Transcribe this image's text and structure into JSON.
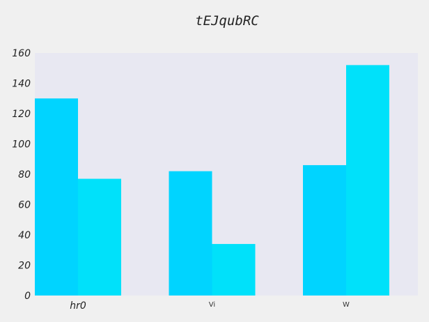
{
  "chart_data": {
    "type": "bar",
    "title": "tEJqubRC",
    "xlabel": "",
    "ylabel": "",
    "categories": [
      "hr0",
      "Vi",
      "W"
    ],
    "series": [
      {
        "values": [
          130,
          82,
          86
        ],
        "color": "#00d4ff"
      },
      {
        "values": [
          77,
          34,
          152
        ],
        "color": "#00e1fa"
      }
    ],
    "ylim": [
      0,
      160
    ],
    "yticks": [
      0,
      20,
      40,
      60,
      80,
      100,
      120,
      140,
      160
    ],
    "grid": false,
    "legend": "none",
    "colors": {
      "background": "#f0f0f0",
      "plot_background": "#e8e8f2"
    }
  }
}
